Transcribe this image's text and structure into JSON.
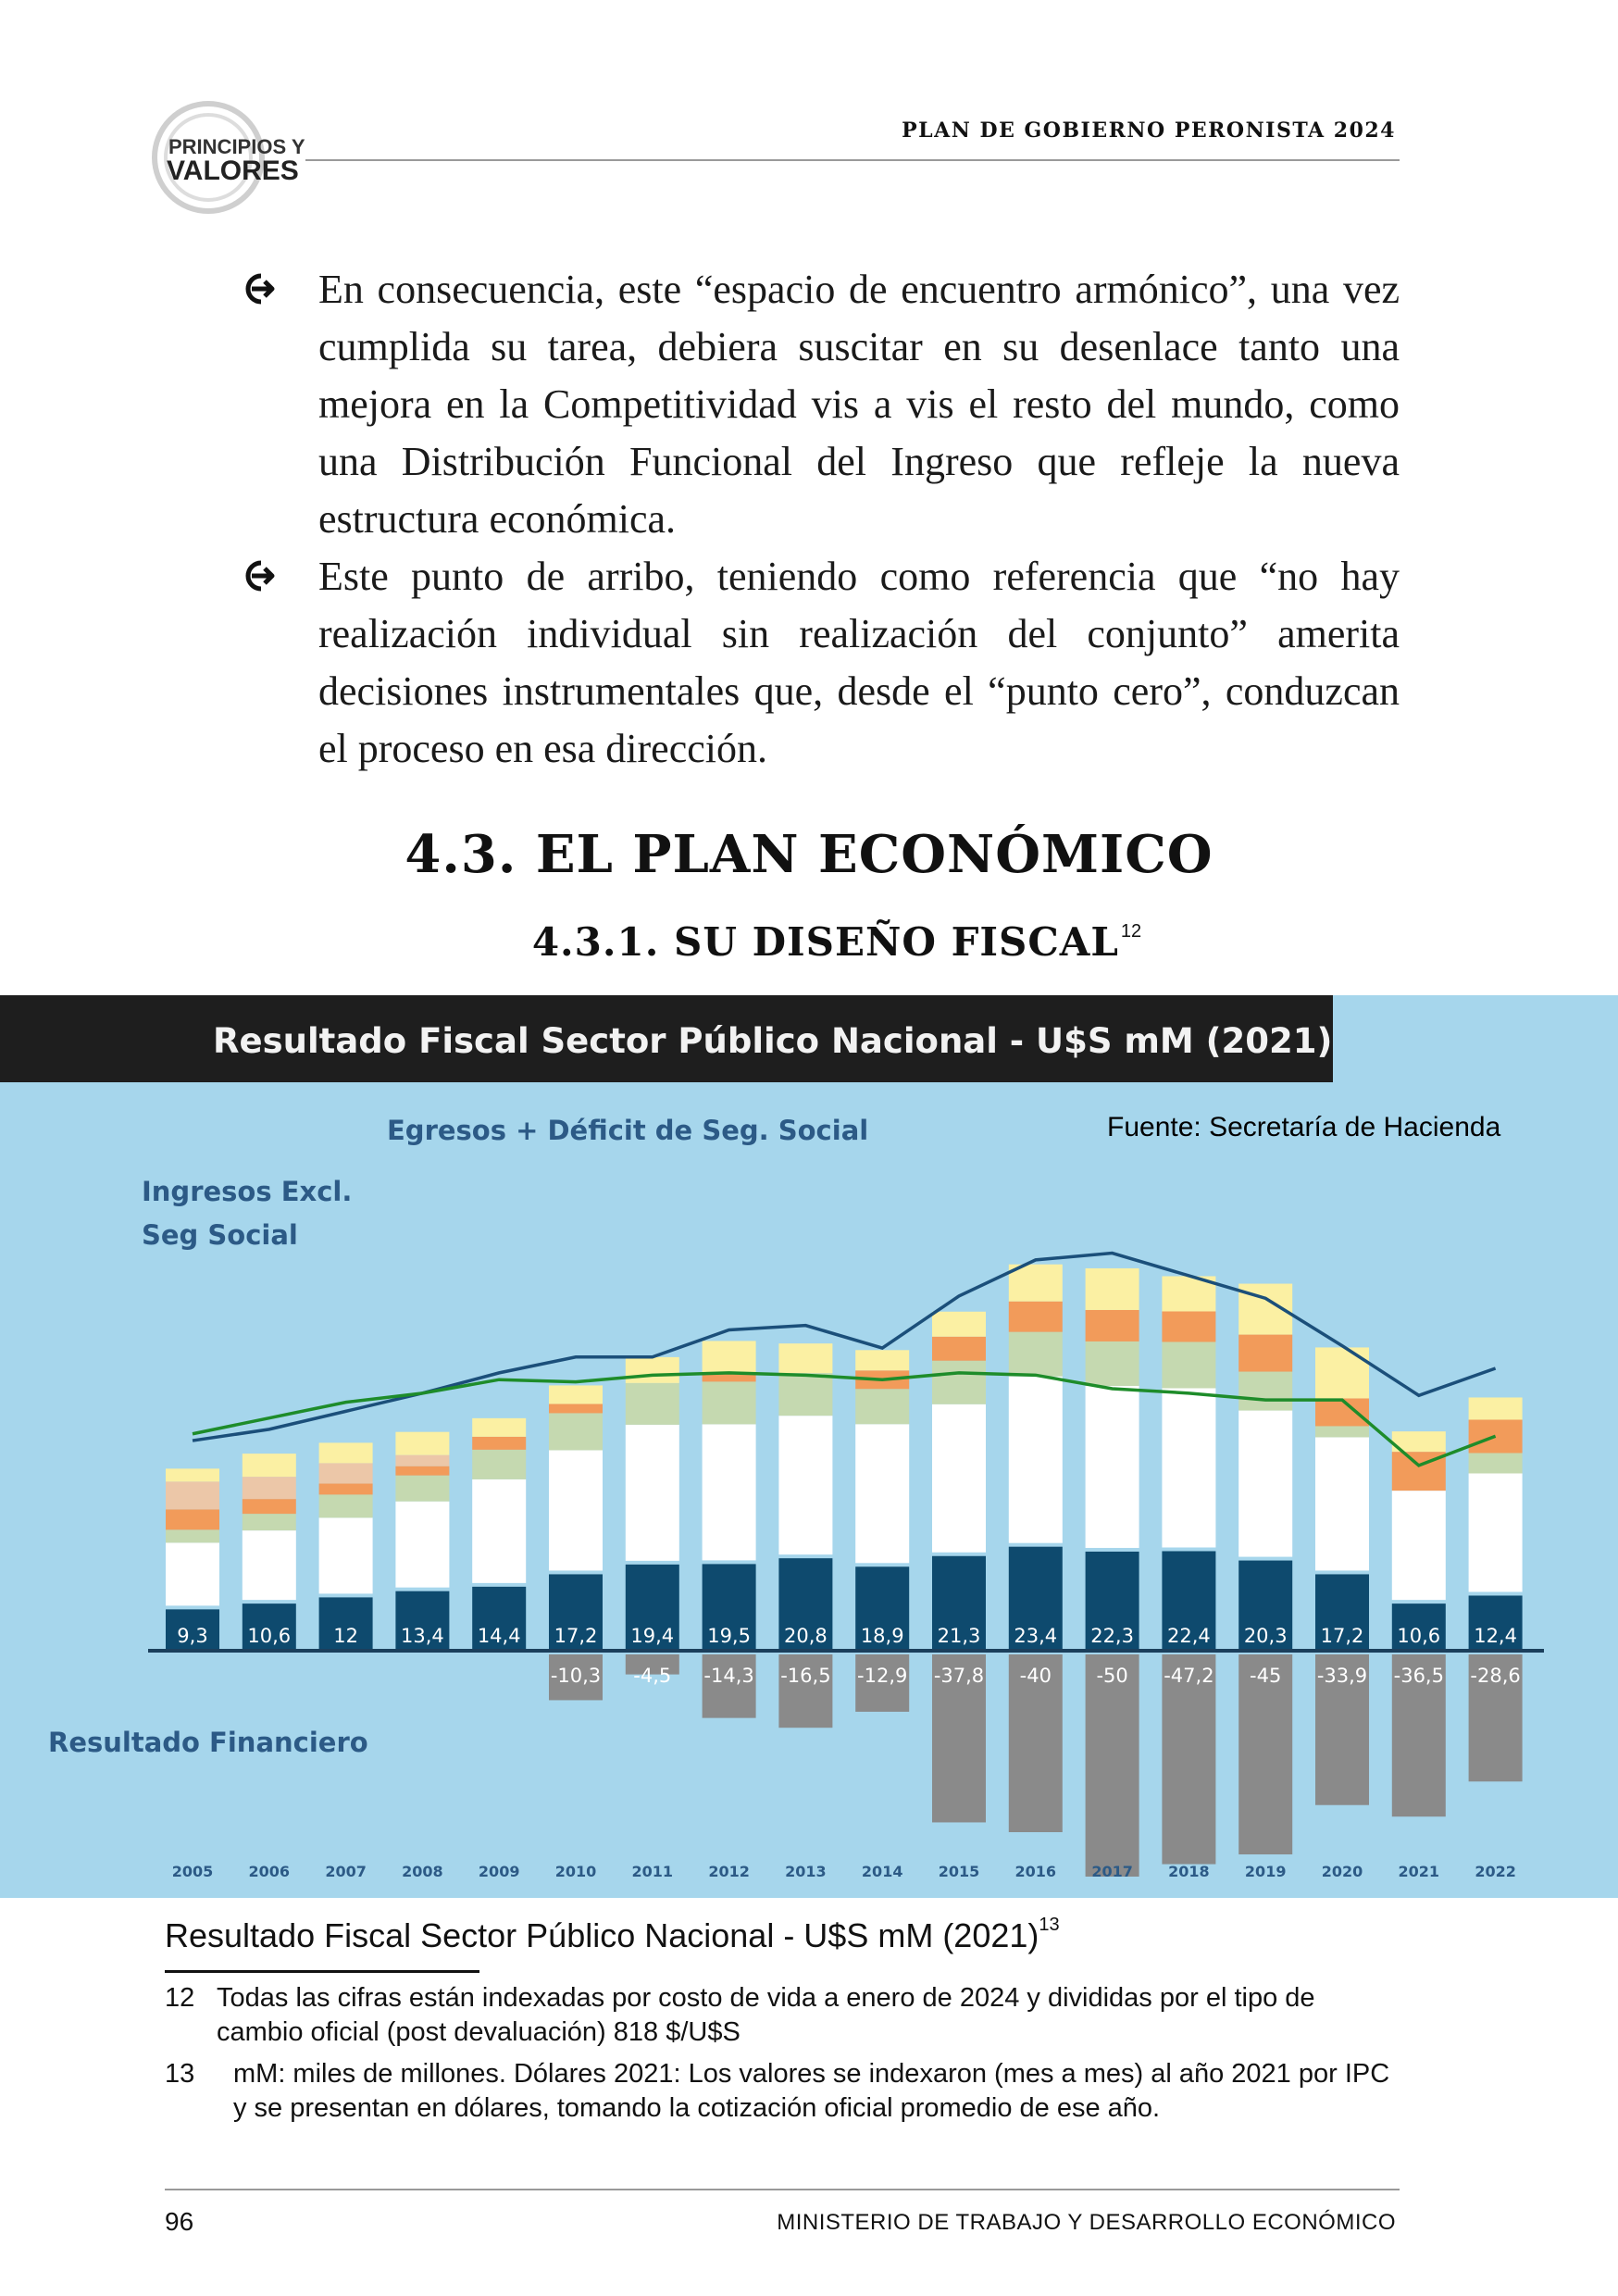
{
  "header": {
    "logo_text_1": "PRINCIPIOS Y",
    "logo_text_2": "VALORES",
    "title": "PLAN DE GOBIERNO PERONISTA 2024"
  },
  "bullets": [
    "En consecuencia, este “espacio de encuentro armónico”, una vez cumplida su tarea, debiera suscitar en su desenlace tanto una mejora en la Competitividad vis a vis el resto del mundo, como una Distribución Funcional del Ingreso que refleje la nueva estructura económica.",
    "Este punto de arribo, teniendo como referencia que “no hay realización individual sin realización del conjunto” amerita decisiones instrumentales que, desde el “punto cero”, conduzcan el proceso en esa dirección."
  ],
  "section_heading": "4.3. EL PLAN ECONÓMICO",
  "subsection_heading": "4.3.1. SU DISEÑO FISCAL",
  "subsection_footnote_ref": "12",
  "chart_data": {
    "type": "bar",
    "title": "Resultado Fiscal Sector Público Nacional - U$S mM (2021)",
    "source": "Fuente: Secretaría de Hacienda",
    "labels": {
      "egresos": "Egresos + Déficit de Seg. Social",
      "ingresos_line1": "Ingresos Excl.",
      "ingresos_line2": "Seg Social",
      "resultado": "Resultado Financiero"
    },
    "categories": [
      "2005",
      "2006",
      "2007",
      "2008",
      "2009",
      "2010",
      "2011",
      "2012",
      "2013",
      "2014",
      "2015",
      "2016",
      "2017",
      "2018",
      "2019",
      "2020",
      "2021",
      "2022"
    ],
    "series": [
      {
        "name": "Resultado Financiero (positive)",
        "values": [
          9.3,
          10.6,
          12,
          13.4,
          14.4,
          17.2,
          19.4,
          19.5,
          20.8,
          18.9,
          21.3,
          23.4,
          22.3,
          22.4,
          20.3,
          17.2,
          10.6,
          12.4
        ],
        "labels": [
          "9,3",
          "10,6",
          "12",
          "13,4",
          "14,4",
          "17,2",
          "19,4",
          "19,5",
          "20,8",
          "18,9",
          "21,3",
          "23,4",
          "22,3",
          "22,4",
          "20,3",
          "17,2",
          "10,6",
          "12,4"
        ]
      },
      {
        "name": "Resultado Financiero (negative)",
        "values": [
          null,
          null,
          null,
          null,
          null,
          -10.3,
          -4.5,
          -14.3,
          -16.5,
          -12.9,
          -37.8,
          -40,
          -50,
          -47.2,
          -45,
          -33.9,
          -36.5,
          -28.6
        ],
        "labels": [
          "",
          "",
          "",
          "",
          "",
          "-10,3",
          "-4,5",
          "-14,3",
          "-16,5",
          "-12,9",
          "-37,8",
          "-40",
          "-50",
          "-47,2",
          "-45",
          "-33,9",
          "-36,5",
          "-28,6"
        ]
      }
    ],
    "stack_components": {
      "white": [
        68,
        75,
        82,
        93,
        112,
        130,
        147,
        147,
        150,
        150,
        160,
        180,
        175,
        172,
        158,
        144,
        118,
        128
      ],
      "green": [
        14,
        18,
        25,
        28,
        32,
        40,
        45,
        46,
        46,
        38,
        47,
        48,
        48,
        50,
        42,
        12,
        0,
        22
      ],
      "orange": [
        22,
        16,
        12,
        10,
        14,
        10,
        0,
        9,
        0,
        20,
        26,
        33,
        34,
        33,
        40,
        30,
        42,
        36
      ],
      "peach": [
        30,
        24,
        22,
        12,
        0,
        0,
        0,
        0,
        0,
        0,
        0,
        0,
        0,
        0,
        0,
        0,
        0,
        0
      ],
      "yellow": [
        14,
        25,
        22,
        25,
        20,
        20,
        28,
        35,
        32,
        22,
        27,
        40,
        45,
        38,
        55,
        55,
        22,
        24
      ]
    },
    "line_blue": [
      9.3,
      9.8,
      10.6,
      11.4,
      12.3,
      13.0,
      13.0,
      14.2,
      14.4,
      13.4,
      15.7,
      17.3,
      17.6,
      16.6,
      15.6,
      13.5,
      11.3,
      12.5
    ],
    "line_green": [
      9.6,
      10.3,
      11.0,
      11.4,
      12.0,
      11.9,
      12.2,
      12.3,
      12.2,
      12.0,
      12.3,
      12.2,
      11.6,
      11.4,
      11.1,
      11.1,
      8.2,
      9.5
    ],
    "colors": {
      "background": "#a6d6ec",
      "title_bar": "#1e1e1e",
      "white": "#ffffff",
      "green": "#c5d9b0",
      "orange": "#f29b5a",
      "peach": "#ecc7a8",
      "yellow": "#fbf0a3",
      "positive_bar": "#0e4a6e",
      "negative_bar": "#8a8a8a",
      "line_blue": "#1b4f7a",
      "line_green": "#1e8c2a",
      "label_blue": "#2c5a86"
    }
  },
  "caption": {
    "text": "Resultado Fiscal Sector Público Nacional - U$S mM (2021)",
    "ref": "13"
  },
  "footnotes": [
    {
      "num": "12",
      "text": "Todas las cifras están indexadas por costo de vida a enero de 2024 y divididas por el tipo de cambio oficial (post devaluación) 818 $/U$S"
    },
    {
      "num": "13",
      "text": "mM: miles de millones. Dólares 2021: Los valores se indexaron (mes a mes) al año 2021 por IPC y se presentan en dólares, tomando la cotización oficial promedio de ese año."
    }
  ],
  "footer": {
    "page_number": "96",
    "text": "MINISTERIO DE TRABAJO Y DESARROLLO ECONÓMICO"
  }
}
